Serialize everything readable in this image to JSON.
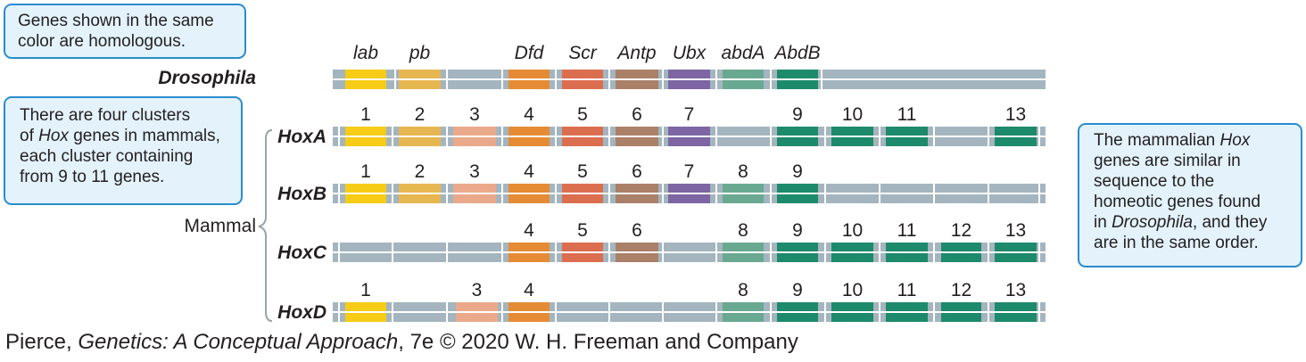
{
  "callouts": {
    "homologous": [
      "Genes shown in the same",
      "color are homologous."
    ],
    "clusters": [
      [
        {
          "t": "There are four clusters"
        }
      ],
      [
        {
          "t": "of "
        },
        {
          "t": "Hox",
          "i": true
        },
        {
          "t": " genes in mammals,"
        }
      ],
      [
        {
          "t": "each cluster containing"
        }
      ],
      [
        {
          "t": "from 9 to 11 genes."
        }
      ]
    ],
    "mammalian": [
      [
        {
          "t": "The mammalian "
        },
        {
          "t": "Hox",
          "i": true
        }
      ],
      [
        {
          "t": "genes are similar in"
        }
      ],
      [
        {
          "t": "sequence to the"
        }
      ],
      [
        {
          "t": "homeotic genes found"
        }
      ],
      [
        {
          "t": "in "
        },
        {
          "t": "Drosophila",
          "i": true
        },
        {
          "t": ", and they"
        }
      ],
      [
        {
          "t": "are in the same order."
        }
      ]
    ]
  },
  "species": {
    "drosophila": "Drosophila",
    "mammal": "Mammal"
  },
  "colors": {
    "lab": "#f6cc16",
    "pb": "#e6b751",
    "g3": "#eaa98a",
    "dfd": "#e68b35",
    "scr": "#dc6e50",
    "antp": "#ab8069",
    "ubx": "#7d66a3",
    "abdA": "#69a991",
    "abdB": "#1d8a6b",
    "chromosome": "#a4b5bf"
  },
  "drosophila_genes": [
    {
      "label": "lab",
      "color": "lab"
    },
    {
      "label": "pb",
      "color": "pb"
    },
    {
      "label": "Dfd",
      "color": "dfd"
    },
    {
      "label": "Scr",
      "color": "scr"
    },
    {
      "label": "Antp",
      "color": "antp"
    },
    {
      "label": "Ubx",
      "color": "ubx"
    },
    {
      "label": "abdA",
      "color": "abdA"
    },
    {
      "label": "AbdB",
      "color": "abdB"
    }
  ],
  "clusters": [
    {
      "name": "HoxA",
      "genes": [
        {
          "n": "1",
          "color": "lab"
        },
        {
          "n": "2",
          "color": "pb"
        },
        {
          "n": "3",
          "color": "g3"
        },
        {
          "n": "4",
          "color": "dfd"
        },
        {
          "n": "5",
          "color": "scr"
        },
        {
          "n": "6",
          "color": "antp"
        },
        {
          "n": "7",
          "color": "ubx"
        },
        {
          "n": "9",
          "color": "abdB"
        },
        {
          "n": "10",
          "color": "abdB"
        },
        {
          "n": "11",
          "color": "abdB"
        },
        {
          "n": "13",
          "color": "abdB"
        }
      ]
    },
    {
      "name": "HoxB",
      "genes": [
        {
          "n": "1",
          "color": "lab"
        },
        {
          "n": "2",
          "color": "pb"
        },
        {
          "n": "3",
          "color": "g3"
        },
        {
          "n": "4",
          "color": "dfd"
        },
        {
          "n": "5",
          "color": "scr"
        },
        {
          "n": "6",
          "color": "antp"
        },
        {
          "n": "7",
          "color": "ubx"
        },
        {
          "n": "8",
          "color": "abdA"
        },
        {
          "n": "9",
          "color": "abdB"
        }
      ]
    },
    {
      "name": "HoxC",
      "genes": [
        {
          "n": "4",
          "color": "dfd"
        },
        {
          "n": "5",
          "color": "scr"
        },
        {
          "n": "6",
          "color": "antp"
        },
        {
          "n": "8",
          "color": "abdA"
        },
        {
          "n": "9",
          "color": "abdB"
        },
        {
          "n": "10",
          "color": "abdB"
        },
        {
          "n": "11",
          "color": "abdB"
        },
        {
          "n": "12",
          "color": "abdB"
        },
        {
          "n": "13",
          "color": "abdB"
        }
      ]
    },
    {
      "name": "HoxD",
      "genes": [
        {
          "n": "1",
          "color": "lab"
        },
        {
          "n": "3",
          "color": "g3"
        },
        {
          "n": "4",
          "color": "dfd"
        },
        {
          "n": "8",
          "color": "abdA"
        },
        {
          "n": "9",
          "color": "abdB"
        },
        {
          "n": "10",
          "color": "abdB"
        },
        {
          "n": "11",
          "color": "abdB"
        },
        {
          "n": "12",
          "color": "abdB"
        },
        {
          "n": "13",
          "color": "abdB"
        }
      ]
    }
  ],
  "caption": [
    {
      "t": "Pierce, "
    },
    {
      "t": "Genetics: A Conceptual Approach",
      "i": true
    },
    {
      "t": ", 7e © 2020 W. H. Freeman and Company"
    }
  ]
}
